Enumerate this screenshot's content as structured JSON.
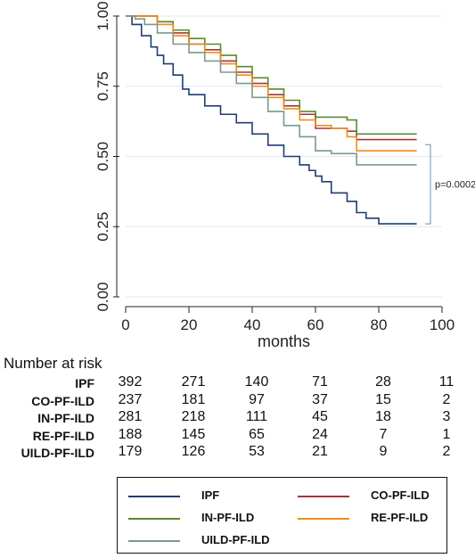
{
  "chart_data": {
    "type": "line",
    "title": "",
    "xlabel": "months",
    "ylabel": "",
    "xlim": [
      0,
      100
    ],
    "ylim": [
      0,
      1
    ],
    "xticks": [
      "0",
      "20",
      "40",
      "60",
      "80",
      "100"
    ],
    "yticks": [
      "0.00",
      "0.25",
      "0.50",
      "0.75",
      "1.00"
    ],
    "grid": "horizontal",
    "annotation": "p=0.0002",
    "series": [
      {
        "name": "IPF",
        "color": "#1f3d73",
        "points": [
          [
            0,
            1
          ],
          [
            2,
            0.97
          ],
          [
            5,
            0.93
          ],
          [
            8,
            0.89
          ],
          [
            10,
            0.86
          ],
          [
            12,
            0.83
          ],
          [
            15,
            0.79
          ],
          [
            18,
            0.74
          ],
          [
            20,
            0.72
          ],
          [
            25,
            0.68
          ],
          [
            30,
            0.65
          ],
          [
            35,
            0.62
          ],
          [
            40,
            0.58
          ],
          [
            45,
            0.54
          ],
          [
            50,
            0.5
          ],
          [
            55,
            0.47
          ],
          [
            58,
            0.45
          ],
          [
            60,
            0.43
          ],
          [
            62,
            0.41
          ],
          [
            65,
            0.37
          ],
          [
            70,
            0.34
          ],
          [
            73,
            0.3
          ],
          [
            76,
            0.28
          ],
          [
            80,
            0.26
          ],
          [
            92,
            0.26
          ]
        ]
      },
      {
        "name": "CO-PF-ILD",
        "color": "#a8323c",
        "points": [
          [
            0,
            1
          ],
          [
            5,
            1
          ],
          [
            10,
            0.98
          ],
          [
            15,
            0.94
          ],
          [
            20,
            0.9
          ],
          [
            25,
            0.88
          ],
          [
            30,
            0.84
          ],
          [
            35,
            0.8
          ],
          [
            40,
            0.76
          ],
          [
            45,
            0.72
          ],
          [
            50,
            0.68
          ],
          [
            55,
            0.65
          ],
          [
            60,
            0.6
          ],
          [
            65,
            0.6
          ],
          [
            70,
            0.59
          ],
          [
            73,
            0.56
          ],
          [
            92,
            0.56
          ]
        ]
      },
      {
        "name": "IN-PF-ILD",
        "color": "#5a8a2e",
        "points": [
          [
            0,
            1
          ],
          [
            5,
            1
          ],
          [
            10,
            0.98
          ],
          [
            15,
            0.95
          ],
          [
            20,
            0.92
          ],
          [
            25,
            0.9
          ],
          [
            30,
            0.86
          ],
          [
            35,
            0.82
          ],
          [
            40,
            0.78
          ],
          [
            45,
            0.74
          ],
          [
            50,
            0.7
          ],
          [
            55,
            0.66
          ],
          [
            60,
            0.64
          ],
          [
            70,
            0.63
          ],
          [
            73,
            0.58
          ],
          [
            92,
            0.58
          ]
        ]
      },
      {
        "name": "RE-PF-ILD",
        "color": "#f08c1a",
        "points": [
          [
            0,
            1
          ],
          [
            5,
            1
          ],
          [
            10,
            0.97
          ],
          [
            15,
            0.93
          ],
          [
            20,
            0.9
          ],
          [
            25,
            0.87
          ],
          [
            30,
            0.83
          ],
          [
            35,
            0.79
          ],
          [
            40,
            0.75
          ],
          [
            45,
            0.71
          ],
          [
            50,
            0.67
          ],
          [
            55,
            0.63
          ],
          [
            60,
            0.61
          ],
          [
            65,
            0.6
          ],
          [
            70,
            0.57
          ],
          [
            73,
            0.52
          ],
          [
            92,
            0.52
          ]
        ]
      },
      {
        "name": "UILD-PF-ILD",
        "color": "#7a9a8a",
        "points": [
          [
            0,
            1
          ],
          [
            3,
            0.99
          ],
          [
            6,
            0.97
          ],
          [
            10,
            0.94
          ],
          [
            15,
            0.9
          ],
          [
            20,
            0.87
          ],
          [
            25,
            0.84
          ],
          [
            30,
            0.8
          ],
          [
            35,
            0.76
          ],
          [
            40,
            0.71
          ],
          [
            45,
            0.66
          ],
          [
            50,
            0.61
          ],
          [
            55,
            0.57
          ],
          [
            60,
            0.52
          ],
          [
            65,
            0.51
          ],
          [
            70,
            0.51
          ],
          [
            73,
            0.47
          ],
          [
            92,
            0.47
          ]
        ]
      }
    ]
  },
  "risk_table": {
    "title": "Number at risk",
    "x": [
      0,
      20,
      40,
      60,
      80,
      100
    ],
    "rows": [
      {
        "label": "IPF",
        "values": [
          "392",
          "271",
          "140",
          "71",
          "28",
          "11"
        ]
      },
      {
        "label": "CO-PF-ILD",
        "values": [
          "237",
          "181",
          "97",
          "37",
          "15",
          "2"
        ]
      },
      {
        "label": "IN-PF-ILD",
        "values": [
          "281",
          "218",
          "111",
          "45",
          "18",
          "3"
        ]
      },
      {
        "label": "RE-PF-ILD",
        "values": [
          "188",
          "145",
          "65",
          "24",
          "7",
          "1"
        ]
      },
      {
        "label": "UILD-PF-ILD",
        "values": [
          "179",
          "126",
          "53",
          "21",
          "9",
          "2"
        ]
      }
    ]
  },
  "legend": {
    "items": [
      {
        "label": "IPF",
        "color": "#1f3d73"
      },
      {
        "label": "CO-PF-ILD",
        "color": "#a8323c"
      },
      {
        "label": "IN-PF-ILD",
        "color": "#5a8a2e"
      },
      {
        "label": "RE-PF-ILD",
        "color": "#f08c1a"
      },
      {
        "label": "UILD-PF-ILD",
        "color": "#7a9a8a"
      }
    ]
  }
}
